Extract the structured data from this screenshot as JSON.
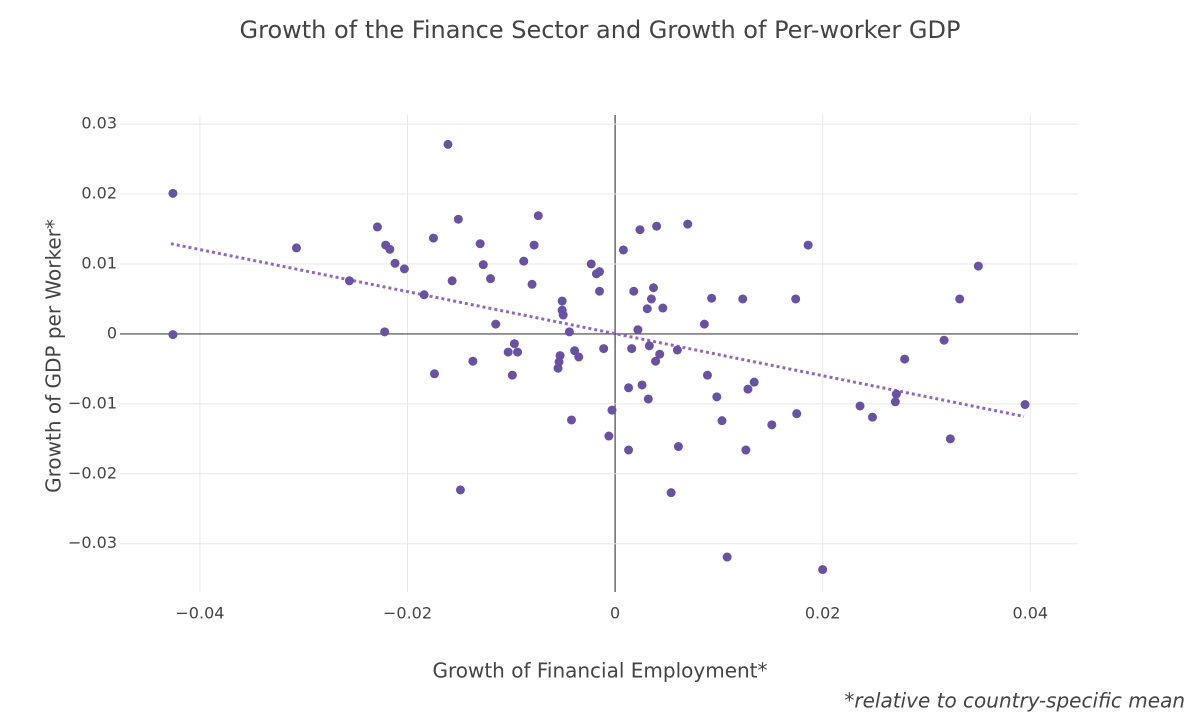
{
  "chart_data": {
    "type": "scatter",
    "title": "Growth of the Finance Sector and Growth of Per-worker GDP",
    "x_label": "Growth of Financial Employment*",
    "y_label": "Growth of GDP per Worker*",
    "footnote": "*relative to country-specific mean",
    "color": "#6a51a3",
    "x": [
      -0.0426,
      -0.0426,
      -0.0307,
      -0.0256,
      -0.0229,
      -0.0221,
      -0.0217,
      -0.0212,
      -0.0222,
      -0.0203,
      -0.0184,
      -0.0175,
      -0.0174,
      -0.0161,
      -0.0157,
      -0.0151,
      -0.0149,
      -0.0137,
      -0.013,
      -0.0127,
      -0.012,
      -0.0115,
      -0.0103,
      -0.0099,
      -0.0097,
      -0.0094,
      -0.0088,
      -0.008,
      -0.0078,
      -0.0074,
      -0.0055,
      -0.0054,
      -0.0053,
      -0.0051,
      -0.0051,
      -0.005,
      -0.0044,
      -0.0042,
      -0.0039,
      -0.0035,
      -0.0023,
      -0.0018,
      -0.0015,
      -0.0015,
      -0.0011,
      -0.0006,
      -0.0003,
      0.0008,
      0.0013,
      0.0013,
      0.0016,
      0.0018,
      0.0022,
      0.0024,
      0.0026,
      0.0031,
      0.0032,
      0.0033,
      0.0035,
      0.0037,
      0.0039,
      0.004,
      0.0043,
      0.0046,
      0.0054,
      0.006,
      0.0061,
      0.007,
      0.0086,
      0.0089,
      0.0093,
      0.0098,
      0.0103,
      0.0108,
      0.0123,
      0.0126,
      0.0128,
      0.0134,
      0.0151,
      0.0174,
      0.0175,
      0.0186,
      0.02,
      0.0236,
      0.0248,
      0.027,
      0.0271,
      0.0279,
      0.0317,
      0.0323,
      0.0332,
      0.035,
      0.0395
    ],
    "values": [
      0.0201,
      -0.0001,
      0.0123,
      0.0076,
      0.0153,
      0.0127,
      0.0121,
      0.0101,
      0.0003,
      0.0093,
      0.0056,
      0.0137,
      -0.0057,
      0.0271,
      0.0076,
      0.0164,
      -0.0223,
      -0.0039,
      0.0129,
      0.0099,
      0.0079,
      0.0014,
      -0.0026,
      -0.0059,
      -0.0014,
      -0.0026,
      0.0104,
      0.0071,
      0.0127,
      0.0169,
      -0.0049,
      -0.004,
      -0.0031,
      0.0047,
      0.0034,
      0.0027,
      0.0003,
      -0.0123,
      -0.0024,
      -0.0033,
      0.01,
      0.0086,
      0.0089,
      0.0061,
      -0.0021,
      -0.0146,
      -0.0109,
      0.012,
      -0.0077,
      -0.0166,
      -0.0021,
      0.0061,
      0.0006,
      0.0149,
      -0.0073,
      0.0036,
      -0.0093,
      -0.0017,
      0.005,
      0.0066,
      -0.0039,
      0.0154,
      -0.0029,
      0.0037,
      -0.0227,
      -0.0023,
      -0.0161,
      0.0157,
      0.0014,
      -0.0059,
      0.0051,
      -0.009,
      -0.0124,
      -0.0319,
      0.005,
      -0.0166,
      -0.0079,
      -0.0069,
      -0.013,
      0.005,
      -0.0114,
      0.0127,
      -0.0337,
      -0.0103,
      -0.0119,
      -0.0097,
      -0.0086,
      -0.0036,
      -0.0009,
      -0.015,
      0.005,
      0.0097,
      -0.0101
    ],
    "trendline": {
      "x": [
        -0.0428,
        0.0394
      ],
      "values": [
        0.0129,
        -0.0118
      ],
      "color": "#9467bd",
      "dashed": true
    },
    "xlim": [
      -0.0477,
      0.0446
    ],
    "ylim": [
      -0.0369,
      0.0313
    ],
    "xticks": [
      {
        "value": -0.04,
        "label": "−0.04"
      },
      {
        "value": -0.02,
        "label": "−0.02"
      },
      0,
      0.02,
      0.04
    ],
    "yticks": [
      {
        "value": -0.03,
        "label": "−0.03"
      },
      {
        "value": -0.02,
        "label": "−0.02"
      },
      {
        "value": -0.01,
        "label": "−0.01"
      },
      0,
      0.01,
      0.02,
      0.03
    ],
    "grid": true,
    "zeroline": true
  }
}
